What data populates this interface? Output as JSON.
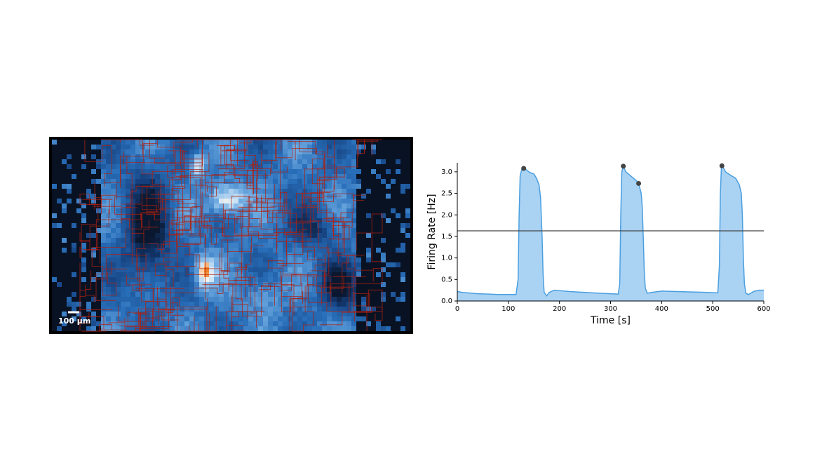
{
  "image_panel": {
    "scale_bar_label": "100 µm"
  },
  "chart_data": {
    "type": "line",
    "x_label": "Time [s]",
    "y_label": "Firing Rate [Hz]",
    "x": [
      0,
      10,
      20,
      40,
      60,
      80,
      100,
      115,
      119,
      121,
      123,
      126,
      130,
      135,
      140,
      145,
      150,
      155,
      160,
      163,
      166,
      168,
      170,
      175,
      180,
      190,
      200,
      220,
      250,
      280,
      300,
      315,
      318,
      320,
      322,
      325,
      330,
      340,
      350,
      355,
      360,
      362,
      364,
      366,
      368,
      372,
      380,
      400,
      430,
      460,
      490,
      510,
      513,
      515,
      517,
      519,
      525,
      535,
      545,
      552,
      556,
      558,
      560,
      562,
      565,
      570,
      580,
      590,
      600
    ],
    "series": [
      {
        "values": [
          0.22,
          0.2,
          0.19,
          0.17,
          0.16,
          0.15,
          0.15,
          0.15,
          0.5,
          2.0,
          2.9,
          3.05,
          3.08,
          3.05,
          3.0,
          2.97,
          2.95,
          2.85,
          2.7,
          2.4,
          1.5,
          0.6,
          0.2,
          0.12,
          0.2,
          0.25,
          0.24,
          0.22,
          0.2,
          0.18,
          0.17,
          0.16,
          0.4,
          2.0,
          3.0,
          3.13,
          3.0,
          2.9,
          2.8,
          2.73,
          2.5,
          2.2,
          1.5,
          0.7,
          0.3,
          0.18,
          0.2,
          0.23,
          0.22,
          0.21,
          0.2,
          0.19,
          0.8,
          2.5,
          3.1,
          3.14,
          3.0,
          2.92,
          2.85,
          2.7,
          2.5,
          2.0,
          1.0,
          0.4,
          0.18,
          0.15,
          0.22,
          0.25,
          0.25
        ],
        "color": "#4a9fe0",
        "fill": "#a9d2f3"
      }
    ],
    "peaks": {
      "x": [
        130,
        325,
        355,
        518
      ],
      "values": [
        3.08,
        3.13,
        2.73,
        3.14
      ],
      "color": "#444444"
    },
    "threshold": {
      "value": 1.63,
      "color": "#444444"
    },
    "xlim": [
      0,
      600
    ],
    "xticks": [
      0,
      100,
      200,
      300,
      400,
      500,
      600
    ],
    "ylim": [
      0,
      3.21
    ],
    "yticks": [
      {
        "value": 0,
        "label": "0.0"
      },
      {
        "value": 0.5,
        "label": "0.5"
      },
      {
        "value": 1,
        "label": "1.0"
      },
      {
        "value": 1.5,
        "label": "1.5"
      },
      {
        "value": 2,
        "label": "2.0"
      },
      {
        "value": 2.5,
        "label": "2.5"
      },
      {
        "value": 3,
        "label": "3.0"
      }
    ]
  }
}
